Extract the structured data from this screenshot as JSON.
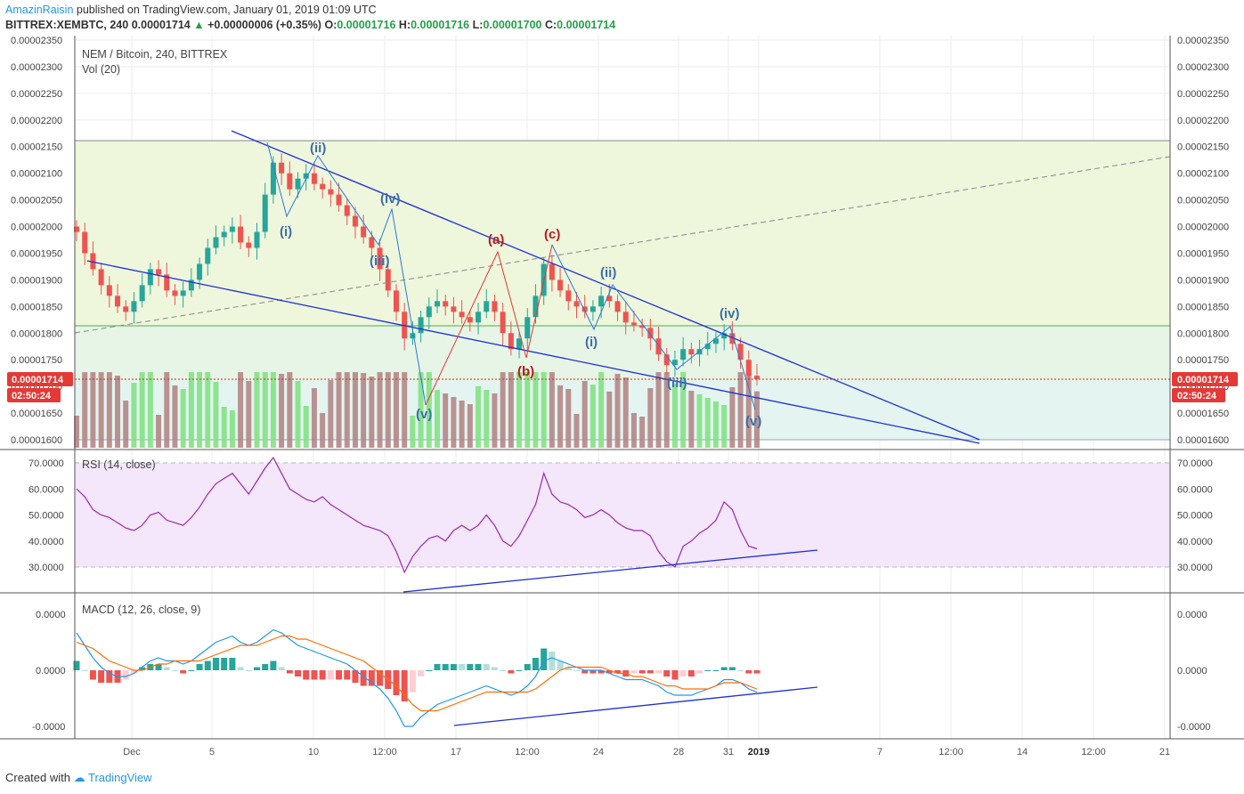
{
  "header": {
    "author": "AmazinRaisin",
    "published": "published on TradingView.com, January 01, 2019 01:09 UTC",
    "symbol": "BITTREX:XEMBTC, 240",
    "last": "0.00001714",
    "change": "+0.00000006 (+0.35%)",
    "o_label": "O:",
    "o_val": "0.00001716",
    "h_label": "H:",
    "h_val": "0.00001716",
    "l_label": "L:",
    "l_val": "0.00001700",
    "c_label": "C:",
    "c_val": "0.00001714"
  },
  "footer": {
    "created_with": "Created with",
    "brand": "TradingView"
  },
  "colors": {
    "up": "#26a69a",
    "down": "#ef5350",
    "trend": "#1e2fd6",
    "wave": "#2b7bd6",
    "abc": "#e53935",
    "rsi": "#9c27b0",
    "macd": "#2196f3",
    "signal": "#ff6d00"
  },
  "chart_data": [
    {
      "type": "candlestick",
      "title": "NEM / Bitcoin, 240, BITTREX",
      "subtitle": "Vol (20)",
      "ylim": [
        1.59e-05,
        2.355e-05
      ],
      "y_ticks": [
        "0.00002350",
        "0.00002300",
        "0.00002250",
        "0.00002200",
        "0.00002150",
        "0.00002100",
        "0.00002050",
        "0.00002000",
        "0.00001950",
        "0.00001900",
        "0.00001850",
        "0.00001800",
        "0.00001750",
        "0.00001700",
        "0.00001650",
        "0.00001600"
      ],
      "x_ticks": [
        "Dec",
        "5",
        "10",
        "12:00",
        "17",
        "12:00",
        "24",
        "28",
        "31",
        "2019",
        "7",
        "12:00",
        "14",
        "12:00",
        "21"
      ],
      "last_price_label": "0.00001714",
      "countdown_label": "02:50:24",
      "candles_close": [
        1.99e-05,
        1.95e-05,
        1.92e-05,
        1.89e-05,
        1.87e-05,
        1.85e-05,
        1.84e-05,
        1.86e-05,
        1.89e-05,
        1.92e-05,
        1.91e-05,
        1.88e-05,
        1.87e-05,
        1.88e-05,
        1.9e-05,
        1.93e-05,
        1.96e-05,
        1.98e-05,
        1.99e-05,
        2e-05,
        1.97e-05,
        1.96e-05,
        1.99e-05,
        2.06e-05,
        2.12e-05,
        2.1e-05,
        2.07e-05,
        2.09e-05,
        2.1e-05,
        2.08e-05,
        2.07e-05,
        2.06e-05,
        2.04e-05,
        2.02e-05,
        2e-05,
        1.98e-05,
        1.96e-05,
        1.92e-05,
        1.88e-05,
        1.84e-05,
        1.79e-05,
        1.8e-05,
        1.83e-05,
        1.85e-05,
        1.86e-05,
        1.85e-05,
        1.84e-05,
        1.83e-05,
        1.82e-05,
        1.84e-05,
        1.86e-05,
        1.84e-05,
        1.8e-05,
        1.77e-05,
        1.79e-05,
        1.83e-05,
        1.87e-05,
        1.93e-05,
        1.9e-05,
        1.88e-05,
        1.86e-05,
        1.85e-05,
        1.84e-05,
        1.85e-05,
        1.87e-05,
        1.86e-05,
        1.84e-05,
        1.82e-05,
        1.815e-05,
        1.81e-05,
        1.79e-05,
        1.76e-05,
        1.74e-05,
        1.75e-05,
        1.77e-05,
        1.76e-05,
        1.77e-05,
        1.78e-05,
        1.79e-05,
        1.8e-05,
        1.78e-05,
        1.75e-05,
        1.72e-05,
        1.714e-05
      ],
      "annotations": {
        "impulse1": [
          "(i)",
          "(ii)",
          "(iii)",
          "(iv)",
          "(v)"
        ],
        "abc": [
          "(a)",
          "(b)",
          "(c)"
        ],
        "impulse2": [
          "(i)",
          "(ii)",
          "(iii)",
          "(iv)",
          "(v)"
        ]
      }
    },
    {
      "type": "line",
      "title": "RSI (14, close)",
      "ylim": [
        20,
        75
      ],
      "y_ticks": [
        "70.0000",
        "60.0000",
        "50.0000",
        "40.0000",
        "30.0000"
      ],
      "values": [
        60,
        57,
        52,
        50,
        49,
        47,
        45,
        44,
        46,
        50,
        51,
        48,
        47,
        46,
        49,
        53,
        58,
        62,
        64,
        66,
        62,
        58,
        63,
        68,
        72,
        66,
        60,
        58,
        56,
        55,
        57,
        54,
        52,
        50,
        48,
        46,
        45,
        44,
        42,
        36,
        28,
        34,
        38,
        41,
        42,
        40,
        44,
        46,
        44,
        46,
        50,
        46,
        40,
        38,
        42,
        48,
        54,
        66,
        58,
        55,
        54,
        52,
        49,
        50,
        52,
        50,
        47,
        45,
        44,
        44,
        42,
        36,
        32,
        30,
        38,
        40,
        43,
        45,
        48,
        55,
        52,
        44,
        38,
        37
      ]
    },
    {
      "type": "line",
      "title": "MACD (12, 26, close, 9)",
      "y_ticks": [
        "0.0000",
        "0.0000",
        "-0.0000"
      ],
      "series": [
        {
          "values": [
            1.2,
            0.8,
            0.4,
            0.1,
            -0.1,
            -0.2,
            -0.2,
            -0.1,
            0.1,
            0.3,
            0.4,
            0.3,
            0.3,
            0.2,
            0.3,
            0.5,
            0.7,
            0.9,
            1.0,
            1.1,
            0.9,
            0.8,
            0.9,
            1.1,
            1.3,
            1.2,
            1.0,
            0.8,
            0.7,
            0.6,
            0.5,
            0.4,
            0.3,
            0.2,
            0.0,
            -0.2,
            -0.4,
            -0.6,
            -0.9,
            -1.3,
            -1.8,
            -1.8,
            -1.5,
            -1.3,
            -1.1,
            -1.0,
            -0.9,
            -0.8,
            -0.7,
            -0.6,
            -0.5,
            -0.6,
            -0.7,
            -0.8,
            -0.7,
            -0.5,
            -0.2,
            0.3,
            0.4,
            0.3,
            0.2,
            0.1,
            0.0,
            0.0,
            0.0,
            -0.1,
            -0.2,
            -0.3,
            -0.3,
            -0.3,
            -0.4,
            -0.5,
            -0.7,
            -0.8,
            -0.8,
            -0.8,
            -0.7,
            -0.6,
            -0.5,
            -0.3,
            -0.3,
            -0.4,
            -0.6,
            -0.7
          ]
        },
        {
          "values": [
            0.9,
            0.8,
            0.7,
            0.5,
            0.3,
            0.2,
            0.1,
            0.0,
            0.0,
            0.1,
            0.2,
            0.2,
            0.3,
            0.3,
            0.3,
            0.3,
            0.4,
            0.5,
            0.6,
            0.7,
            0.8,
            0.8,
            0.8,
            0.9,
            1.0,
            1.1,
            1.1,
            1.0,
            1.0,
            0.9,
            0.8,
            0.7,
            0.6,
            0.5,
            0.4,
            0.3,
            0.1,
            -0.1,
            -0.3,
            -0.5,
            -0.8,
            -1.1,
            -1.3,
            -1.3,
            -1.3,
            -1.2,
            -1.1,
            -1.0,
            -0.9,
            -0.8,
            -0.7,
            -0.7,
            -0.7,
            -0.7,
            -0.7,
            -0.7,
            -0.6,
            -0.4,
            -0.2,
            0.0,
            0.1,
            0.1,
            0.1,
            0.1,
            0.1,
            0.0,
            -0.1,
            -0.1,
            -0.2,
            -0.2,
            -0.3,
            -0.4,
            -0.5,
            -0.5,
            -0.6,
            -0.6,
            -0.6,
            -0.6,
            -0.5,
            -0.4,
            -0.4,
            -0.4,
            -0.5,
            -0.6
          ]
        }
      ]
    }
  ]
}
